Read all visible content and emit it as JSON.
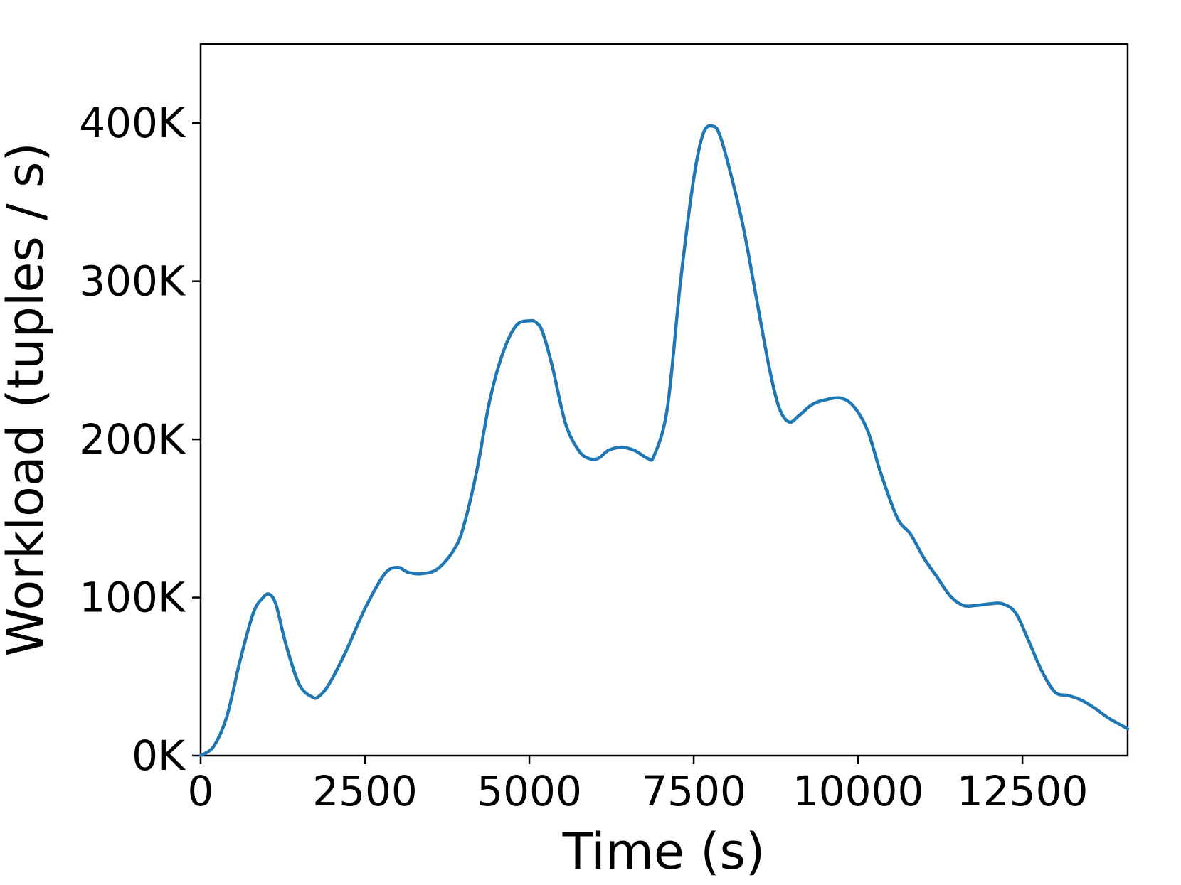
{
  "chart_data": {
    "type": "line",
    "xlabel": "Time (s)",
    "ylabel": "Workload (tuples / s)",
    "xlim": [
      0,
      14100
    ],
    "ylim": [
      0,
      450000
    ],
    "xticks": [
      0,
      2500,
      5000,
      7500,
      10000,
      12500
    ],
    "xtick_labels": [
      "0",
      "2500",
      "5000",
      "7500",
      "10000",
      "12500"
    ],
    "yticks": [
      0,
      100000,
      200000,
      300000,
      400000
    ],
    "ytick_labels": [
      "0K",
      "100K",
      "200K",
      "300K",
      "400K"
    ],
    "grid": false,
    "color": "#1f77b4",
    "series": [
      {
        "x": [
          0,
          200,
          400,
          600,
          800,
          950,
          1050,
          1150,
          1300,
          1500,
          1700,
          1800,
          1950,
          2200,
          2500,
          2800,
          3000,
          3150,
          3350,
          3600,
          3850,
          4000,
          4200,
          4400,
          4600,
          4800,
          5000,
          5100,
          5200,
          5350,
          5550,
          5750,
          5900,
          6050,
          6200,
          6400,
          6600,
          6800,
          6900,
          7100,
          7300,
          7500,
          7650,
          7800,
          7900,
          8050,
          8250,
          8450,
          8650,
          8800,
          8950,
          9100,
          9300,
          9500,
          9750,
          9950,
          10150,
          10350,
          10600,
          10800,
          11000,
          11200,
          11400,
          11600,
          11800,
          12000,
          12200,
          12400,
          12600,
          12800,
          13000,
          13200,
          13400,
          13600,
          13800,
          14100
        ],
        "y": [
          0,
          6000,
          25000,
          60000,
          90000,
          100000,
          102000,
          95000,
          70000,
          45000,
          37000,
          37500,
          45000,
          65000,
          93000,
          115000,
          119000,
          116000,
          115000,
          118000,
          130000,
          145000,
          180000,
          225000,
          255000,
          272000,
          275000,
          274000,
          268000,
          246000,
          210000,
          193000,
          188000,
          188000,
          193000,
          195000,
          193000,
          188000,
          190000,
          220000,
          300000,
          365000,
          394000,
          398000,
          392000,
          370000,
          335000,
          290000,
          245000,
          220000,
          211000,
          215000,
          222000,
          225000,
          226000,
          220000,
          205000,
          178000,
          150000,
          140000,
          125000,
          113000,
          101000,
          95000,
          95000,
          96000,
          96000,
          90000,
          72000,
          53000,
          40000,
          38000,
          35000,
          30000,
          24000,
          17000
        ]
      }
    ]
  }
}
